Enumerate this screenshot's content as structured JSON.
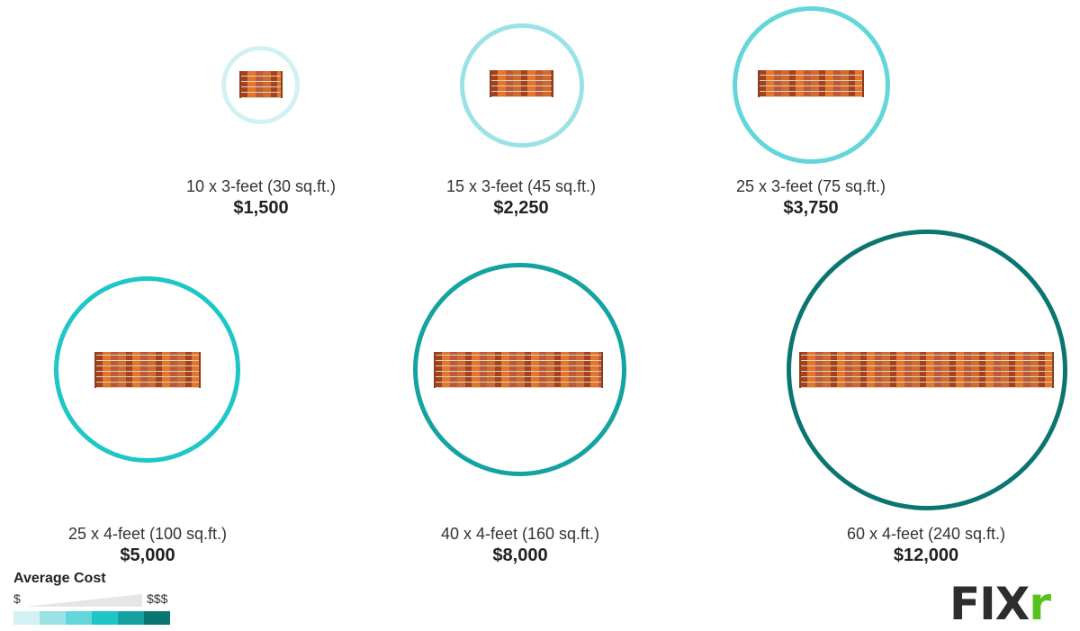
{
  "items": [
    {
      "label": "10 x 3-feet (30 sq.ft.)",
      "price": "$1,500",
      "color": "#d2f1f3"
    },
    {
      "label": "15 x 3-feet (45 sq.ft.)",
      "price": "$2,250",
      "color": "#9be2e6"
    },
    {
      "label": "25 x 3-feet (75 sq.ft.)",
      "price": "$3,750",
      "color": "#63d6da"
    },
    {
      "label": "25 x 4-feet (100 sq.ft.)",
      "price": "$5,000",
      "color": "#1ec6c8"
    },
    {
      "label": "40 x 4-feet (160 sq.ft.)",
      "price": "$8,000",
      "color": "#14a3a1"
    },
    {
      "label": "60 x 4-feet (240 sq.ft.)",
      "price": "$12,000",
      "color": "#0b7571"
    }
  ],
  "legend": {
    "title": "Average Cost",
    "low": "$",
    "high": "$$$",
    "scale": [
      "#d2f1f3",
      "#9be2e6",
      "#63d6da",
      "#1ec6c8",
      "#14a3a1",
      "#0b7571"
    ]
  },
  "logo": {
    "text_main": "FIX",
    "text_accent": "r"
  }
}
